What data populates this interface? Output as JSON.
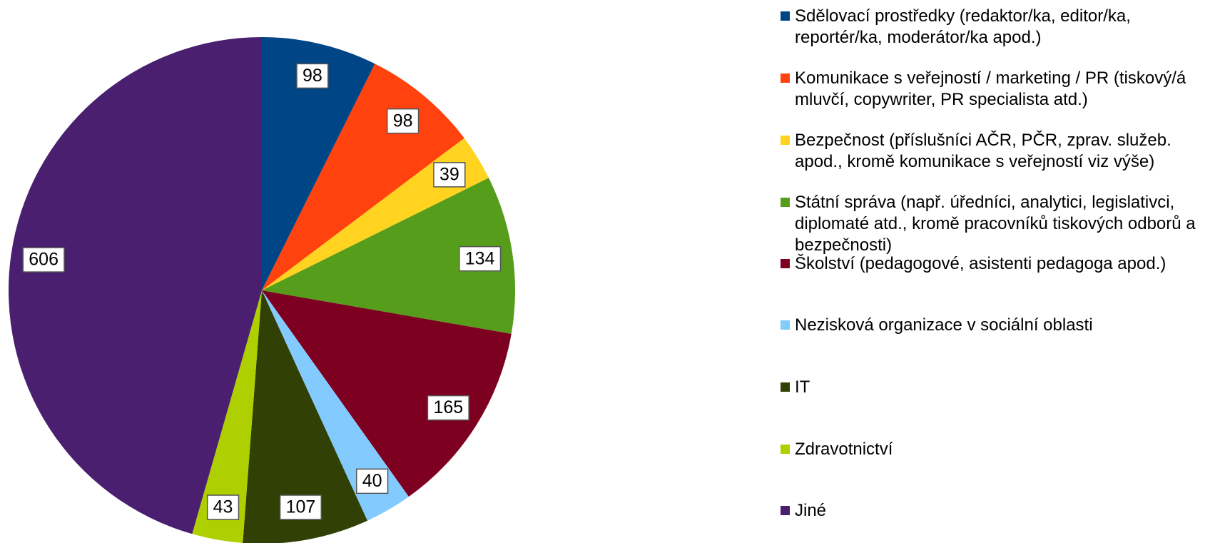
{
  "chart_data": {
    "type": "pie",
    "categories": [
      "Sdělovací prostředky (redaktor/ka, editor/ka, reportér/ka, moderátor/ka apod.)",
      "Komunikace s veřejností / marketing / PR (tiskový/á mluvčí, copywriter, PR specialista atd.)",
      "Bezpečnost (příslušníci AČR, PČR, zprav. služeb. apod., kromě komunikace s veřejností viz výše)",
      "Státní správa (např. úředníci, analytici, legislativci, diplomaté atd., kromě pracovníků tiskových odborů a bezpečnosti)",
      "Školství (pedagogové, asistenti pedagoga apod.)",
      "Nezisková organizace v sociální oblasti",
      "IT",
      "Zdravotnictví",
      "Jiné"
    ],
    "values": [
      98,
      98,
      39,
      134,
      165,
      40,
      107,
      43,
      606
    ],
    "colors": [
      "#004586",
      "#ff420e",
      "#ffd320",
      "#579d1c",
      "#7e0021",
      "#83caff",
      "#314004",
      "#aecf00",
      "#4b1f6f"
    ],
    "legend": "right"
  }
}
